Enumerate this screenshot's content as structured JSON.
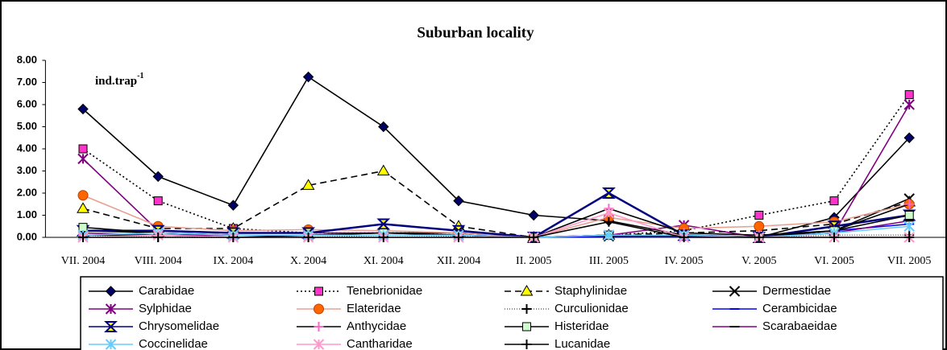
{
  "chart_data": {
    "type": "line",
    "title": "Suburban locality",
    "annotation": {
      "text": "ind.trap",
      "superscript": "-1"
    },
    "categories": [
      "VII. 2004",
      "VIII. 2004",
      "IX. 2004",
      "X. 2004",
      "XI. 2004",
      "XII. 2004",
      "II. 2005",
      "III. 2005",
      "IV. 2005",
      "V. 2005",
      "VI. 2005",
      "VII. 2005"
    ],
    "ylim": [
      0,
      8
    ],
    "yticks": [
      {
        "value": 0,
        "label": "0.00"
      },
      {
        "value": 1,
        "label": "1.00"
      },
      {
        "value": 2,
        "label": "2.00"
      },
      {
        "value": 3,
        "label": "3.00"
      },
      {
        "value": 4,
        "label": "4.00"
      },
      {
        "value": 5,
        "label": "5.00"
      },
      {
        "value": 6,
        "label": "6.00"
      },
      {
        "value": 7,
        "label": "7.00"
      },
      {
        "value": 8,
        "label": "8.00"
      }
    ],
    "series": [
      {
        "name": "Carabidae",
        "color": "#000000",
        "marker": "diamond",
        "marker_fill": "#000066",
        "dash": "none",
        "values": [
          5.8,
          2.75,
          1.45,
          7.25,
          5.0,
          1.65,
          1.0,
          0.75,
          0.1,
          0.0,
          0.9,
          4.5
        ]
      },
      {
        "name": "Tenebrionidae",
        "color": "#000000",
        "marker": "square",
        "marker_fill": "#ff33cc",
        "dash": "2,3",
        "values": [
          4.0,
          1.65,
          0.4,
          0.2,
          0.2,
          0.2,
          0.0,
          0.1,
          0.3,
          1.0,
          1.65,
          6.45
        ]
      },
      {
        "name": "Staphylinidae",
        "color": "#000000",
        "marker": "triangle",
        "marker_fill": "#ffff00",
        "dash": "8,5",
        "values": [
          1.3,
          0.4,
          0.4,
          2.35,
          3.0,
          0.5,
          0.0,
          0.1,
          0.2,
          0.3,
          0.6,
          1.6
        ]
      },
      {
        "name": "Dermestidae",
        "color": "#000000",
        "marker": "x",
        "marker_fill": "#000000",
        "dash": "none",
        "values": [
          0.3,
          0.2,
          0.1,
          0.1,
          0.2,
          0.2,
          0.0,
          0.05,
          0.1,
          0.0,
          0.3,
          1.75
        ]
      },
      {
        "name": "Sylphidae",
        "color": "#800080",
        "marker": "asterisk",
        "marker_fill": "#800080",
        "dash": "none",
        "values": [
          3.55,
          0.3,
          0.2,
          0.2,
          0.2,
          0.1,
          0.0,
          0.1,
          0.55,
          0.0,
          0.2,
          6.0
        ]
      },
      {
        "name": "Elateridae",
        "color": "#e8a090",
        "marker": "circle",
        "marker_fill": "#ff6600",
        "dash": "none",
        "values": [
          1.9,
          0.5,
          0.3,
          0.35,
          0.3,
          0.2,
          0.0,
          0.9,
          0.4,
          0.5,
          0.7,
          1.5
        ]
      },
      {
        "name": "Curculionidae",
        "color": "#666666",
        "marker": "plus",
        "marker_fill": "#000000",
        "dash": "1,2",
        "values": [
          0.1,
          0.0,
          0.0,
          0.0,
          0.1,
          0.05,
          0.0,
          0.1,
          0.1,
          0.0,
          0.1,
          0.1
        ]
      },
      {
        "name": "Cerambicidae",
        "color": "#0000ff",
        "marker": "dash",
        "marker_fill": "#0000ff",
        "dash": "none",
        "values": [
          0.1,
          0.1,
          0.1,
          0.1,
          0.1,
          0.1,
          0.0,
          0.05,
          0.05,
          0.0,
          0.3,
          0.6
        ]
      },
      {
        "name": "Chrysomelidae",
        "color": "#000080",
        "marker": "bowtie",
        "marker_fill": "#ffff00",
        "dash": "none",
        "values": [
          0.3,
          0.3,
          0.2,
          0.2,
          0.6,
          0.3,
          0.0,
          2.0,
          0.1,
          0.0,
          0.5,
          1.0
        ]
      },
      {
        "name": "Anthycidae",
        "color": "#000000",
        "marker": "plus",
        "marker_fill": "#ff66cc",
        "dash": "none",
        "values": [
          0.1,
          0.1,
          0.0,
          0.1,
          0.1,
          0.1,
          0.0,
          1.3,
          0.2,
          0.1,
          0.3,
          1.5
        ]
      },
      {
        "name": "Histeridae",
        "color": "#000000",
        "marker": "square",
        "marker_fill": "#ccffcc",
        "dash": "none",
        "values": [
          0.45,
          0.2,
          0.1,
          0.1,
          0.2,
          0.1,
          0.0,
          0.1,
          0.1,
          0.0,
          0.3,
          1.0
        ]
      },
      {
        "name": "Scarabaeidae",
        "color": "#800080",
        "marker": "dash",
        "marker_fill": "#000000",
        "dash": "none",
        "values": [
          0.2,
          0.1,
          0.1,
          0.1,
          0.1,
          0.1,
          0.0,
          0.1,
          0.1,
          0.0,
          0.2,
          0.75
        ]
      },
      {
        "name": "Coccinelidae",
        "color": "#66ccff",
        "marker": "asterisk",
        "marker_fill": "#66ccff",
        "dash": "none",
        "values": [
          0.1,
          0.2,
          0.1,
          0.1,
          0.1,
          0.1,
          0.0,
          0.1,
          0.1,
          0.0,
          0.2,
          0.5
        ]
      },
      {
        "name": "Cantharidae",
        "color": "#ff99cc",
        "marker": "asterisk",
        "marker_fill": "#ff99cc",
        "dash": "none",
        "values": [
          0.0,
          0.1,
          0.0,
          0.0,
          0.0,
          0.0,
          0.0,
          1.1,
          0.0,
          0.0,
          0.0,
          0.0
        ]
      },
      {
        "name": "Lucanidae",
        "color": "#000000",
        "marker": "plus",
        "marker_fill": "#000000",
        "dash": "none",
        "values": [
          0.0,
          0.0,
          0.0,
          0.0,
          0.0,
          0.0,
          0.0,
          0.7,
          0.0,
          0.0,
          0.0,
          0.0
        ]
      }
    ]
  }
}
